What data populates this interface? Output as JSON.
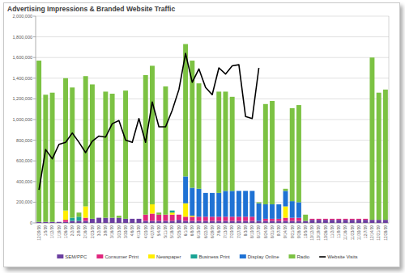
{
  "chart_data": {
    "type": "bar",
    "title": "Advertising Impressions & Branded Website Traffic",
    "stacked": true,
    "grid": true,
    "legend": "bottom",
    "categories": [
      "12/29/08",
      "1/5/09",
      "1/12/09",
      "1/19/09",
      "1/26/09",
      "2/2/09",
      "2/9/09",
      "2/16/09",
      "2/23/09",
      "3/2/09",
      "3/9/09",
      "3/16/09",
      "3/23/09",
      "3/30/09",
      "4/6/09",
      "4/13/09",
      "4/20/09",
      "4/27/09",
      "5/4/09",
      "5/11/09",
      "5/18/09",
      "5/25/09",
      "6/1/09",
      "6/8/09",
      "6/15/09",
      "6/22/09",
      "6/29/09",
      "7/6/09",
      "7/13/09",
      "7/20/09",
      "7/27/09",
      "8/3/09",
      "8/10/09",
      "8/17/09",
      "8/24/09",
      "8/31/09",
      "9/7/09",
      "9/14/09",
      "9/21/09",
      "9/28/09",
      "10/5/09",
      "10/12/09",
      "10/19/09",
      "10/26/09",
      "11/2/09",
      "11/9/09",
      "11/16/09",
      "11/23/09",
      "11/30/09",
      "12/7/09",
      "12/14/09",
      "12/21/09",
      "12/28/09"
    ],
    "ylim": [
      0,
      2000000
    ],
    "yticks": [
      0,
      {
        "value": 200000,
        "label": "200,000"
      },
      {
        "value": 400000,
        "label": "400,000"
      },
      {
        "value": 600000,
        "label": "600,000"
      },
      {
        "value": 800000,
        "label": "800,000"
      },
      {
        "value": 1000000,
        "label": "1,000,000"
      },
      {
        "value": 1200000,
        "label": "1,200,000"
      },
      {
        "value": 1400000,
        "label": "1,400,000"
      },
      {
        "value": 1600000,
        "label": "1,600,000"
      },
      {
        "value": 1800000,
        "label": "1,800,000"
      },
      {
        "value": 2000000,
        "label": "2,000,000"
      }
    ],
    "series": [
      {
        "name": "SEM/PPC",
        "type": "bar",
        "color": "#6b3fa0",
        "values": [
          10000,
          10000,
          10000,
          10000,
          10000,
          20000,
          20000,
          20000,
          40000,
          50000,
          50000,
          50000,
          50000,
          40000,
          40000,
          40000,
          20000,
          20000,
          20000,
          20000,
          20000,
          30000,
          20000,
          20000,
          20000,
          20000,
          20000,
          20000,
          20000,
          20000,
          20000,
          20000,
          20000,
          20000,
          20000,
          20000,
          20000,
          20000,
          20000,
          20000,
          20000,
          30000,
          30000,
          30000,
          30000,
          30000,
          30000,
          30000,
          30000,
          30000,
          30000,
          30000,
          30000
        ]
      },
      {
        "name": "Consumer Print",
        "type": "bar",
        "color": "#e0267d",
        "values": [
          0,
          0,
          0,
          0,
          20000,
          0,
          0,
          30000,
          0,
          0,
          0,
          0,
          0,
          0,
          0,
          0,
          60000,
          70000,
          60000,
          60000,
          60000,
          50000,
          40000,
          40000,
          40000,
          40000,
          40000,
          40000,
          40000,
          40000,
          40000,
          40000,
          40000,
          0,
          20000,
          20000,
          20000,
          30000,
          30000,
          30000,
          0,
          10000,
          10000,
          10000,
          10000,
          10000,
          10000,
          10000,
          10000,
          10000,
          0,
          0,
          0
        ]
      },
      {
        "name": "Newspaper",
        "type": "bar",
        "color": "#ffee00",
        "values": [
          0,
          0,
          0,
          0,
          90000,
          0,
          0,
          110000,
          0,
          0,
          0,
          0,
          0,
          0,
          0,
          0,
          0,
          90000,
          0,
          0,
          20000,
          0,
          130000,
          10000,
          0,
          0,
          0,
          0,
          0,
          0,
          0,
          0,
          0,
          0,
          0,
          0,
          0,
          110000,
          0,
          0,
          0,
          0,
          0,
          0,
          0,
          0,
          0,
          0,
          0,
          0,
          0,
          0,
          0
        ]
      },
      {
        "name": "Business Print",
        "type": "bar",
        "color": "#1aa394",
        "values": [
          0,
          0,
          0,
          0,
          0,
          30000,
          40000,
          0,
          0,
          0,
          0,
          0,
          0,
          0,
          0,
          0,
          0,
          0,
          0,
          0,
          20000,
          0,
          0,
          0,
          0,
          0,
          0,
          0,
          0,
          0,
          0,
          0,
          0,
          0,
          0,
          0,
          0,
          0,
          0,
          0,
          0,
          0,
          0,
          0,
          0,
          0,
          0,
          0,
          0,
          0,
          0,
          0,
          0
        ]
      },
      {
        "name": "Display Online",
        "type": "bar",
        "color": "#1f72d4",
        "values": [
          0,
          0,
          0,
          0,
          0,
          0,
          0,
          0,
          0,
          0,
          0,
          0,
          0,
          0,
          0,
          0,
          0,
          0,
          0,
          0,
          0,
          0,
          260000,
          270000,
          270000,
          230000,
          230000,
          230000,
          250000,
          250000,
          250000,
          250000,
          250000,
          170000,
          140000,
          140000,
          140000,
          150000,
          160000,
          150000,
          0,
          0,
          0,
          0,
          0,
          0,
          0,
          0,
          0,
          0,
          0,
          0,
          0
        ]
      },
      {
        "name": "Radio",
        "type": "bar",
        "color": "#7cc243",
        "values": [
          1560000,
          1230000,
          1250000,
          0,
          1280000,
          1260000,
          40000,
          1260000,
          1300000,
          0,
          1220000,
          1200000,
          20000,
          1240000,
          0,
          0,
          1350000,
          1340000,
          20000,
          1240000,
          0,
          0,
          1280000,
          1230000,
          1020000,
          0,
          0,
          980000,
          960000,
          910000,
          0,
          0,
          0,
          10000,
          970000,
          1000000,
          0,
          20000,
          900000,
          940000,
          60000,
          0,
          0,
          0,
          0,
          0,
          0,
          0,
          0,
          0,
          1570000,
          1230000,
          1260000
        ]
      },
      {
        "name": "Website Visits",
        "type": "line",
        "color": "#000000",
        "values": [
          320000,
          710000,
          620000,
          760000,
          780000,
          870000,
          780000,
          680000,
          790000,
          840000,
          830000,
          960000,
          990000,
          800000,
          780000,
          1010000,
          780000,
          1170000,
          930000,
          930000,
          1090000,
          1290000,
          1640000,
          1360000,
          1490000,
          1310000,
          1240000,
          1500000,
          1440000,
          1520000,
          1530000,
          1030000,
          1010000,
          1500000,
          null,
          null,
          null,
          null,
          null,
          null,
          null,
          null,
          null,
          null,
          null,
          null,
          null,
          null,
          null,
          null,
          null,
          null,
          null
        ]
      }
    ]
  }
}
